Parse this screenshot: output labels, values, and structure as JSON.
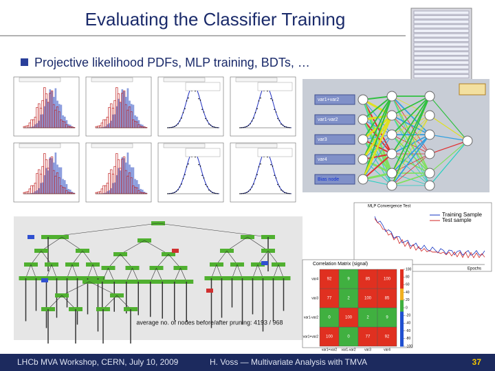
{
  "header": {
    "title": "Evaluating the Classifier Training"
  },
  "bullet": "Projective likelihood PDFs, MLP training, BDTs, …",
  "network": {
    "inputs": [
      "var1+var2",
      "var1-var2",
      "var3",
      "var4",
      "Bias node"
    ]
  },
  "convergence": {
    "title": "MLP Convergence Test",
    "legend": [
      "Training Sample",
      "Test sample"
    ],
    "x_label": "Epochs"
  },
  "correlation": {
    "title": "Correlation Matrix (signal)",
    "variables": [
      "var1+var2",
      "var1-var2",
      "var3",
      "var4"
    ],
    "values": [
      [
        100,
        0,
        77,
        92
      ],
      [
        0,
        100,
        2,
        9
      ],
      [
        77,
        2,
        100,
        85
      ],
      [
        92,
        9,
        85,
        100
      ]
    ],
    "scale_ticks": [
      100,
      80,
      60,
      40,
      20,
      0,
      -20,
      -40,
      -60,
      -80,
      -100
    ]
  },
  "tree_caption": "average no. of nodes before/after pruning: 4193 / 968",
  "footer": {
    "left": "LHCb MVA Workshop, CERN, July 10, 2009",
    "center": "H. Voss — Multivariate Analysis with TMVA",
    "page": "37"
  }
}
